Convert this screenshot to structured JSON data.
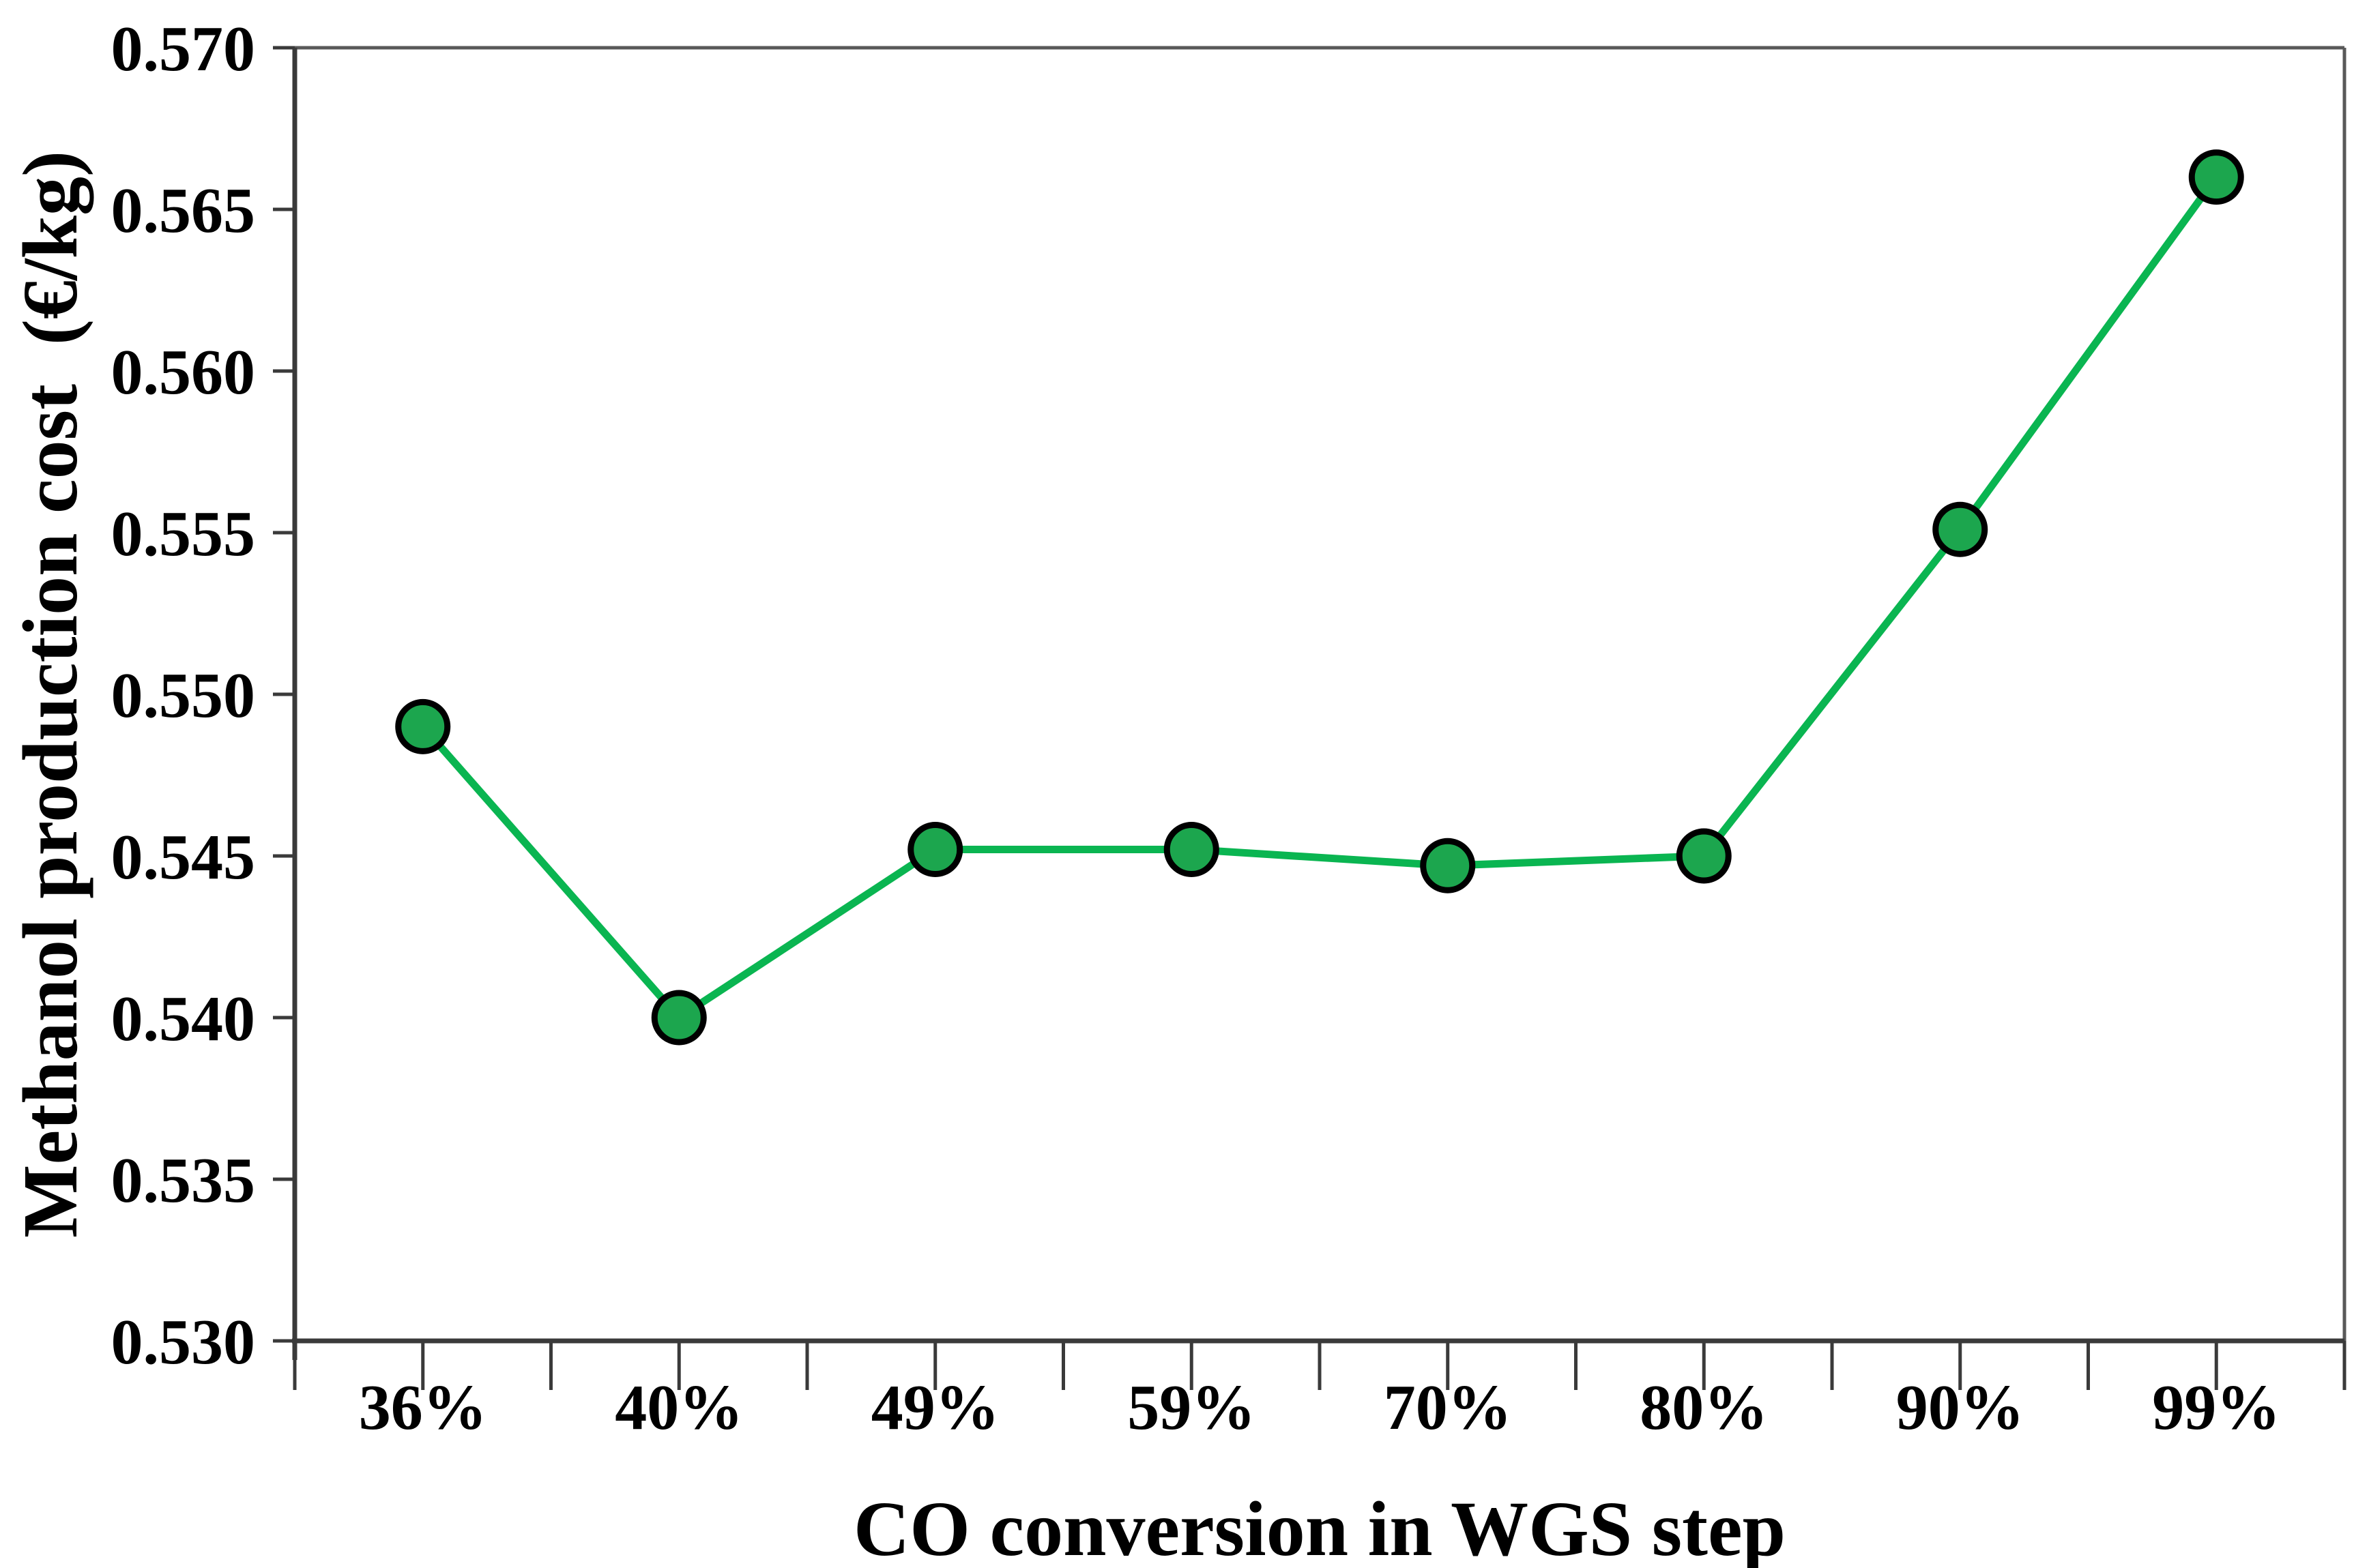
{
  "figure": {
    "background_color": "#ffffff",
    "axis_line_color": "#3a3a3a",
    "frame_line_color": "#595959",
    "text_color": "#000000"
  },
  "chart_data": {
    "type": "line",
    "title": "",
    "xlabel": "CO conversion in WGS step",
    "ylabel": "Methanol production cost  (€/kg)",
    "categories": [
      "36%",
      "40%",
      "49%",
      "59%",
      "70%",
      "80%",
      "90%",
      "99%"
    ],
    "series": [
      {
        "name": "Methanol production cost",
        "values": [
          0.549,
          0.54,
          0.5452,
          0.5452,
          0.5447,
          0.545,
          0.5551,
          0.566
        ],
        "line_color": "#0ab551",
        "marker_fill": "#1ca64e",
        "marker_stroke": "#000000"
      }
    ],
    "ylim": [
      0.53,
      0.57
    ],
    "ytick_interval": 0.005,
    "ytick_labels": [
      "0.570",
      "0.565",
      "0.560",
      "0.555",
      "0.550",
      "0.545",
      "0.540",
      "0.535",
      "0.530"
    ],
    "xtick_minor_divisions": 16,
    "grid": false,
    "legend": "none",
    "marker_style": "circle"
  }
}
